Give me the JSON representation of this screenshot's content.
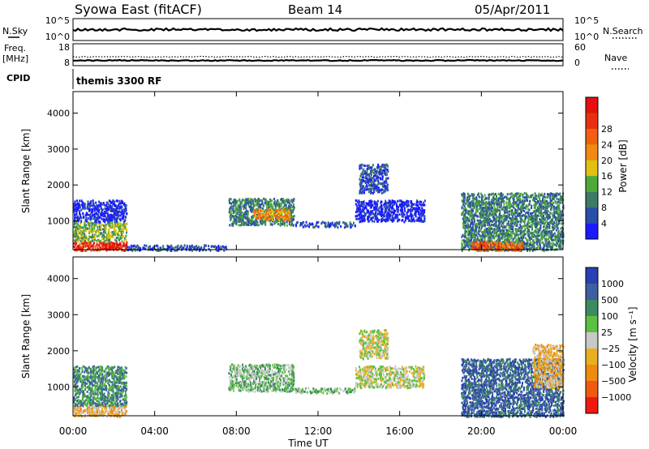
{
  "header": {
    "station": "Syowa East (fitACF)",
    "beam": "Beam 14",
    "date": "05/Apr/2011"
  },
  "summary": {
    "left_top_label": "N.Sky",
    "left_top_ticks": [
      "10^5",
      "10^0"
    ],
    "right_top_label": "N.Search",
    "right_top_ticks": [
      "10^5",
      "10^0"
    ],
    "left_freq_label": "Freq.",
    "left_freq_unit": "[MHz]",
    "left_freq_ticks": [
      "18",
      "8"
    ],
    "right_nave_label": "Nave",
    "right_nave_ticks": [
      "60",
      "0"
    ],
    "cpid_label": "CPID",
    "cpid_value": "themis 3300 RF"
  },
  "x_axis": {
    "label": "Time UT",
    "ticks": [
      "00:00",
      "04:00",
      "08:00",
      "12:00",
      "16:00",
      "20:00",
      "00:00"
    ]
  },
  "colors": {
    "power_scale": [
      "#1a1aff",
      "#2a4fa8",
      "#3e7a66",
      "#4daa3a",
      "#e0c010",
      "#f08a10",
      "#f06010",
      "#e83010",
      "#e41010"
    ],
    "velocity_scale": [
      "#2a3fb0",
      "#3e5fa0",
      "#3d8a60",
      "#5cc040",
      "#c8c8c8",
      "#e8b020",
      "#f08a10",
      "#f05a10",
      "#ee1a10"
    ]
  },
  "chart_data": [
    {
      "type": "heatmap",
      "name": "power",
      "ylabel": "Slant Range [km]",
      "yticks": [
        "1000",
        "2000",
        "3000",
        "4000"
      ],
      "ylim": [
        200,
        4600
      ],
      "xlim_hours": [
        0,
        24
      ],
      "colorbar_label": "Power [dB]",
      "colorbar_ticks": [
        "4",
        "8",
        "12",
        "16",
        "20",
        "24",
        "28"
      ],
      "regions": [
        {
          "t": [
            0.0,
            2.6
          ],
          "r": [
            200,
            450
          ],
          "level": 8
        },
        {
          "t": [
            0.0,
            2.6
          ],
          "r": [
            450,
            1000
          ],
          "level": 4
        },
        {
          "t": [
            0.0,
            2.6
          ],
          "r": [
            1000,
            1600
          ],
          "level": 1
        },
        {
          "t": [
            1.4,
            2.3
          ],
          "r": [
            250,
            420
          ],
          "level": 9
        },
        {
          "t": [
            2.6,
            7.5
          ],
          "r": [
            200,
            350
          ],
          "level": 2
        },
        {
          "t": [
            7.6,
            10.8
          ],
          "r": [
            900,
            1650
          ],
          "level": 3
        },
        {
          "t": [
            8.8,
            10.6
          ],
          "r": [
            1050,
            1350
          ],
          "level": 6
        },
        {
          "t": [
            10.8,
            13.8
          ],
          "r": [
            850,
            1000
          ],
          "level": 2
        },
        {
          "t": [
            13.8,
            17.2
          ],
          "r": [
            1000,
            1600
          ],
          "level": 1
        },
        {
          "t": [
            14.0,
            15.4
          ],
          "r": [
            1800,
            2600
          ],
          "level": 2
        },
        {
          "t": [
            19.0,
            24.0
          ],
          "r": [
            200,
            1800
          ],
          "level": 3
        },
        {
          "t": [
            19.5,
            22.0
          ],
          "r": [
            200,
            450
          ],
          "level": 7
        }
      ]
    },
    {
      "type": "heatmap",
      "name": "velocity",
      "ylabel": "Slant Range [km]",
      "yticks": [
        "1000",
        "2000",
        "3000",
        "4000"
      ],
      "ylim": [
        200,
        4600
      ],
      "xlim_hours": [
        0,
        24
      ],
      "colorbar_label": "Velocity [m s⁻¹]",
      "colorbar_ticks": [
        "1000",
        "500",
        "100",
        "25",
        "−25",
        "−100",
        "−500",
        "−1000"
      ],
      "regions": [
        {
          "t": [
            0.0,
            2.6
          ],
          "r": [
            200,
            500
          ],
          "level": 6
        },
        {
          "t": [
            0.0,
            2.6
          ],
          "r": [
            500,
            1600
          ],
          "level": 3
        },
        {
          "t": [
            7.6,
            10.8
          ],
          "r": [
            900,
            1650
          ],
          "level": 4
        },
        {
          "t": [
            10.8,
            13.8
          ],
          "r": [
            850,
            1000
          ],
          "level": 4
        },
        {
          "t": [
            13.8,
            17.2
          ],
          "r": [
            1000,
            1600
          ],
          "level": 5
        },
        {
          "t": [
            14.0,
            15.4
          ],
          "r": [
            1800,
            2600
          ],
          "level": 5
        },
        {
          "t": [
            19.0,
            24.0
          ],
          "r": [
            200,
            1800
          ],
          "level": 2
        },
        {
          "t": [
            22.5,
            24.0
          ],
          "r": [
            1000,
            2200
          ],
          "level": 6
        }
      ]
    }
  ]
}
